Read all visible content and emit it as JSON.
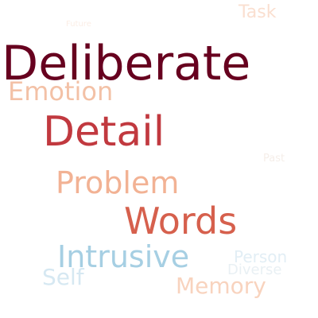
{
  "words": {
    "deliberate": {
      "text": "Deliberate",
      "color": "#67001f"
    },
    "detail": {
      "text": "Detail",
      "color": "#c1393f"
    },
    "words": {
      "text": "Words",
      "color": "#d6604d"
    },
    "problem": {
      "text": "Problem",
      "color": "#f2b294"
    },
    "intrusive": {
      "text": "Intrusive",
      "color": "#a6cfe3"
    },
    "emotion": {
      "text": "Emotion",
      "color": "#f3c1a6"
    },
    "memory": {
      "text": "Memory",
      "color": "#f8d3be"
    },
    "task": {
      "text": "Task",
      "color": "#fadfd0"
    },
    "self": {
      "text": "Self",
      "color": "#d6e8f2"
    },
    "person": {
      "text": "Person",
      "color": "#e2eef5"
    },
    "diverse": {
      "text": "Diverse",
      "color": "#e9f0f4"
    },
    "past": {
      "text": "Past",
      "color": "#f5eee9"
    },
    "future": {
      "text": "Future",
      "color": "#fbeee6"
    }
  }
}
